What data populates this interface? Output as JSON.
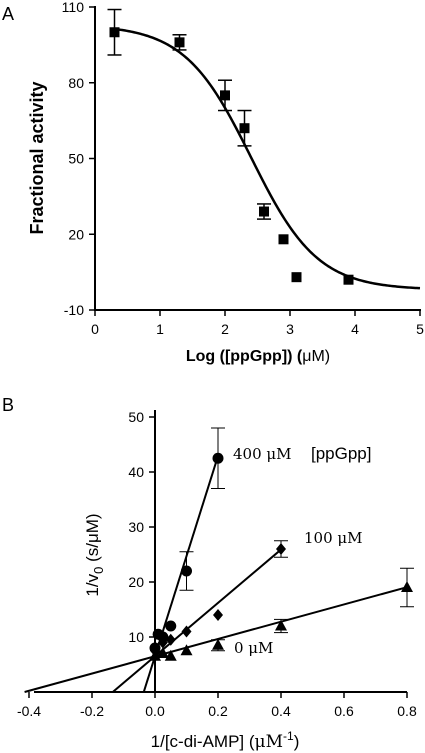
{
  "chart_data": [
    {
      "type": "scatter",
      "panel_label": "A",
      "xlabel_main": "Log ([ppGpp]) (",
      "xlabel_unit": "μM)",
      "ylabel": "Fractional activity",
      "xlim": [
        0,
        5
      ],
      "ylim": [
        -10,
        110
      ],
      "xticks": [
        0,
        1,
        2,
        3,
        4,
        5
      ],
      "yticks": [
        -10,
        20,
        50,
        80,
        110
      ],
      "grid": false,
      "points": [
        {
          "x": 0.3,
          "y": 100,
          "err": 9
        },
        {
          "x": 1.3,
          "y": 96,
          "err": 3
        },
        {
          "x": 2.0,
          "y": 75,
          "err": 6
        },
        {
          "x": 2.3,
          "y": 62,
          "err": 7
        },
        {
          "x": 2.6,
          "y": 29,
          "err": 3
        },
        {
          "x": 2.9,
          "y": 18,
          "err": 0
        },
        {
          "x": 3.1,
          "y": 3,
          "err": 0
        },
        {
          "x": 3.9,
          "y": 2,
          "err": 0
        }
      ],
      "fit": {
        "top": 103,
        "bottom": -2,
        "log_ic50": 2.4,
        "hill_slope": -0.85
      }
    },
    {
      "type": "line",
      "panel_label": "B",
      "xlabel_main": "1/[c-di-AMP] (",
      "xlabel_unit": "μM",
      "xlabel_exp": "-1",
      "xlabel_close": ")",
      "ylabel_main": "1/v",
      "ylabel_sub": "0",
      "ylabel_unit": " (s/μM)",
      "xlim": [
        -0.4,
        0.8
      ],
      "ylim": [
        0,
        50
      ],
      "xticks": [
        -0.4,
        -0.2,
        0.0,
        0.2,
        0.4,
        0.6,
        0.8
      ],
      "xtick_labels": [
        "-0.4",
        "-0.2",
        "0.0",
        "0.2",
        "0.4",
        "0.6",
        "0.8"
      ],
      "yticks": [
        10,
        20,
        30,
        40,
        50
      ],
      "grid": false,
      "legend_title": "[ppGpp]",
      "series": [
        {
          "name": "400 μM",
          "marker": "circle",
          "slope": 182,
          "intercept": 6.5,
          "x_start": -0.036,
          "points": [
            {
              "x": 0.0,
              "y": 8,
              "err": 0
            },
            {
              "x": 0.01,
              "y": 10.5,
              "err": 0
            },
            {
              "x": 0.025,
              "y": 10,
              "err": 0
            },
            {
              "x": 0.05,
              "y": 12,
              "err": 0
            },
            {
              "x": 0.1,
              "y": 22,
              "err": 3.5
            },
            {
              "x": 0.2,
              "y": 42.5,
              "err": 5.5
            }
          ]
        },
        {
          "name": "100 μM",
          "marker": "diamond",
          "slope": 48.5,
          "intercept": 6.5,
          "x_start": -0.134,
          "points": [
            {
              "x": 0.0,
              "y": 7.5,
              "err": 0
            },
            {
              "x": 0.025,
              "y": 9,
              "err": 0
            },
            {
              "x": 0.05,
              "y": 9.5,
              "err": 0
            },
            {
              "x": 0.1,
              "y": 11,
              "err": 0
            },
            {
              "x": 0.2,
              "y": 14,
              "err": 0
            },
            {
              "x": 0.4,
              "y": 26,
              "err": 1.5
            }
          ]
        },
        {
          "name": "0 μM",
          "marker": "triangle",
          "slope": 15.7,
          "intercept": 6.5,
          "x_start": -0.414,
          "points": [
            {
              "x": 0.0,
              "y": 6.5,
              "err": 0
            },
            {
              "x": 0.025,
              "y": 7,
              "err": 0
            },
            {
              "x": 0.05,
              "y": 6.5,
              "err": 0
            },
            {
              "x": 0.1,
              "y": 7.5,
              "err": 0
            },
            {
              "x": 0.2,
              "y": 8.5,
              "err": 1
            },
            {
              "x": 0.4,
              "y": 12,
              "err": 1.2
            },
            {
              "x": 0.8,
              "y": 19,
              "err": 3.5
            }
          ]
        }
      ]
    }
  ]
}
